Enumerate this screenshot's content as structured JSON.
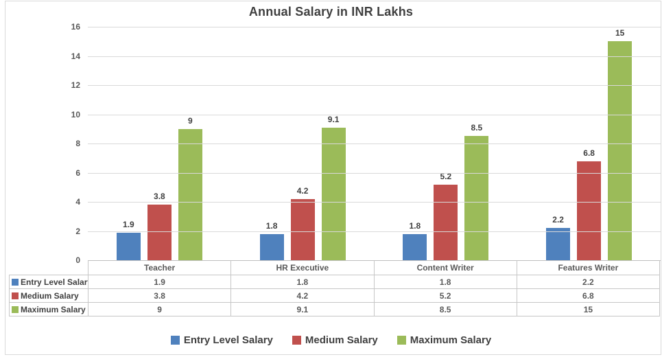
{
  "title": "Annual Salary in INR Lakhs",
  "chart_data": {
    "type": "bar",
    "title": "Annual Salary in INR Lakhs",
    "categories": [
      "Teacher",
      "HR Executive",
      "Content Writer",
      "Features Writer"
    ],
    "series": [
      {
        "name": "Entry Level Salary",
        "color": "#4F81BD",
        "values": [
          1.9,
          1.8,
          1.8,
          2.2
        ]
      },
      {
        "name": "Medium Salary",
        "color": "#C0504D",
        "values": [
          3.8,
          4.2,
          5.2,
          6.8
        ]
      },
      {
        "name": "Maximum Salary",
        "color": "#9BBB59",
        "values": [
          9,
          9.1,
          8.5,
          15
        ]
      }
    ],
    "xlabel": "",
    "ylabel": "",
    "ylim": [
      0,
      16
    ],
    "ytick_step": 2,
    "yticks": [
      "0",
      "2",
      "4",
      "6",
      "8",
      "10",
      "12",
      "14",
      "16"
    ],
    "grid": true,
    "legend_position": "bottom",
    "data_table_shown": true,
    "data_labels_shown": true
  },
  "colors": {
    "title_text": "#3F3F3F",
    "axis_text": "#595959",
    "gridline": "#D9D9D9",
    "axis_line": "#BFBFBF",
    "table_border": "#C6C6C6",
    "legend_text": "#404040",
    "background": "#FFFFFF"
  }
}
